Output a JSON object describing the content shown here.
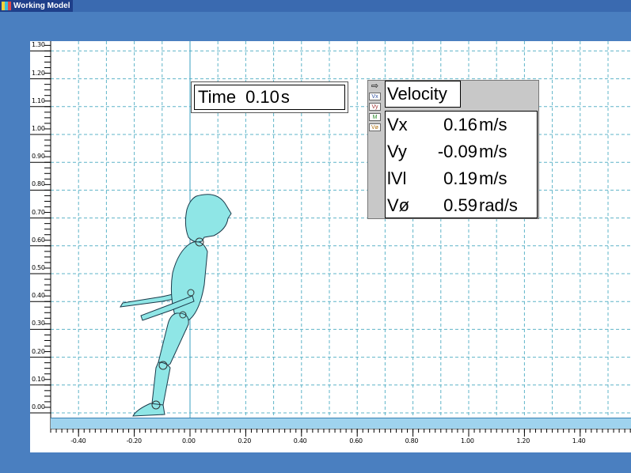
{
  "app": {
    "title": "Working Model"
  },
  "time_meter": {
    "label": "Time",
    "value": "0.10",
    "unit": "s"
  },
  "velocity_meter": {
    "title": "Velocity",
    "icons": [
      "Vx",
      "Vy",
      "M",
      "Vø"
    ],
    "rows": [
      {
        "label": "Vx",
        "value": "0.16",
        "unit": "m/s"
      },
      {
        "label": "Vy",
        "value": "-0.09",
        "unit": "m/s"
      },
      {
        "label": "lVl",
        "value": "0.19",
        "unit": "m/s"
      },
      {
        "label": "Vø",
        "value": "0.59",
        "unit": "rad/s"
      }
    ]
  },
  "rulers": {
    "vertical_labels": [
      "1.30",
      "1.20",
      "1.10",
      "1.00",
      "0.90",
      "0.80",
      "0.70",
      "0.60",
      "0.50",
      "0.40",
      "0.30",
      "0.20",
      "0.10",
      "0.00"
    ],
    "horizontal_labels": [
      "-0.40",
      "-0.20",
      "0.00",
      "0.20",
      "0.40",
      "0.60",
      "0.80",
      "1.00",
      "1.20",
      "1.40"
    ]
  },
  "colors": {
    "background": "#4a7fc0",
    "grid": "#5fb4c8",
    "body": "#8fe6e6",
    "floor": "#9fd3ee"
  }
}
